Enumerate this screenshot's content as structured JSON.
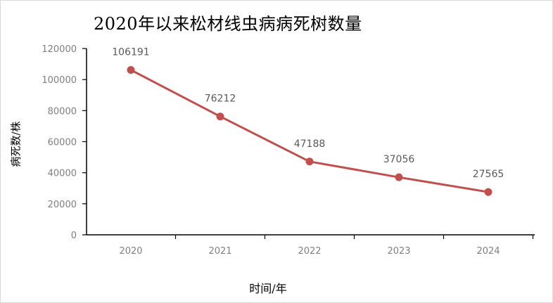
{
  "chart_data": {
    "type": "line",
    "title": "2020年以来松材线虫病病死树数量",
    "xlabel": "时间/年",
    "ylabel": "病死数/株",
    "categories": [
      "2020",
      "2021",
      "2022",
      "2023",
      "2024"
    ],
    "series": [
      {
        "values": [
          106191,
          76212,
          47188,
          37056,
          27565
        ]
      }
    ],
    "data_labels": [
      "106191",
      "76212",
      "47188",
      "37056",
      "27565"
    ],
    "y_ticks": [
      "0",
      "20000",
      "40000",
      "60000",
      "80000",
      "100000",
      "120000"
    ],
    "ylim": [
      0,
      120000
    ],
    "grid": false,
    "line_color": "#c0504d",
    "axis_color": "#000000"
  }
}
